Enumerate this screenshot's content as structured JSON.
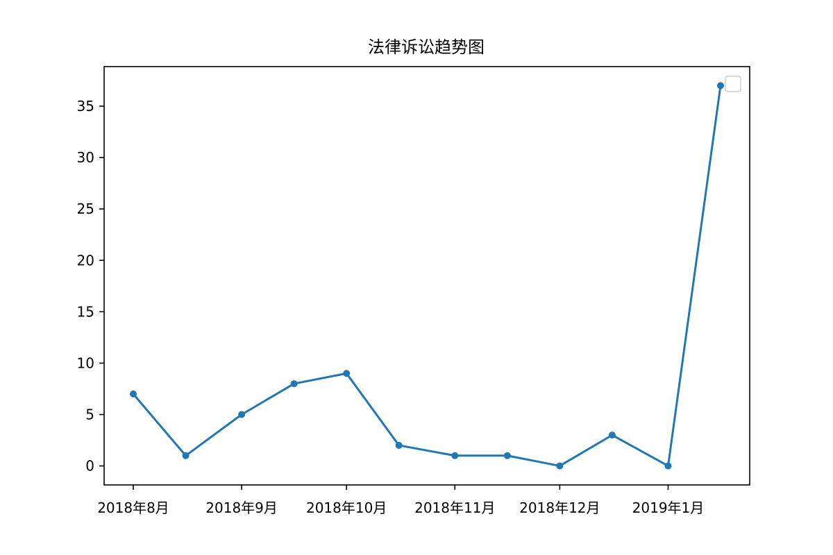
{
  "chart_data": {
    "type": "line",
    "title": "法律诉讼趋势图",
    "xlabel": "",
    "ylabel": "",
    "x_ticks": [
      "2018年8月",
      "2018年9月",
      "2018年10月",
      "2018年11月",
      "2018年12月",
      "2019年1月"
    ],
    "y_ticks": [
      0,
      5,
      10,
      15,
      20,
      25,
      30,
      35
    ],
    "ylim": [
      -1.85,
      38.85
    ],
    "grid": false,
    "legend": {
      "placement": "top-right",
      "entries": []
    },
    "series": [
      {
        "color": "#1f77b4",
        "marker": "circle",
        "points": [
          {
            "x": "2018-08-01",
            "y": 7
          },
          {
            "x": "2018-08-16",
            "y": 1
          },
          {
            "x": "2018-09-01",
            "y": 5
          },
          {
            "x": "2018-09-16",
            "y": 8
          },
          {
            "x": "2018-10-01",
            "y": 9
          },
          {
            "x": "2018-10-16",
            "y": 2
          },
          {
            "x": "2018-11-01",
            "y": 1
          },
          {
            "x": "2018-11-16",
            "y": 1
          },
          {
            "x": "2018-12-01",
            "y": 0
          },
          {
            "x": "2018-12-16",
            "y": 3
          },
          {
            "x": "2019-01-01",
            "y": 0
          },
          {
            "x": "2019-01-16",
            "y": 37
          }
        ]
      }
    ]
  }
}
